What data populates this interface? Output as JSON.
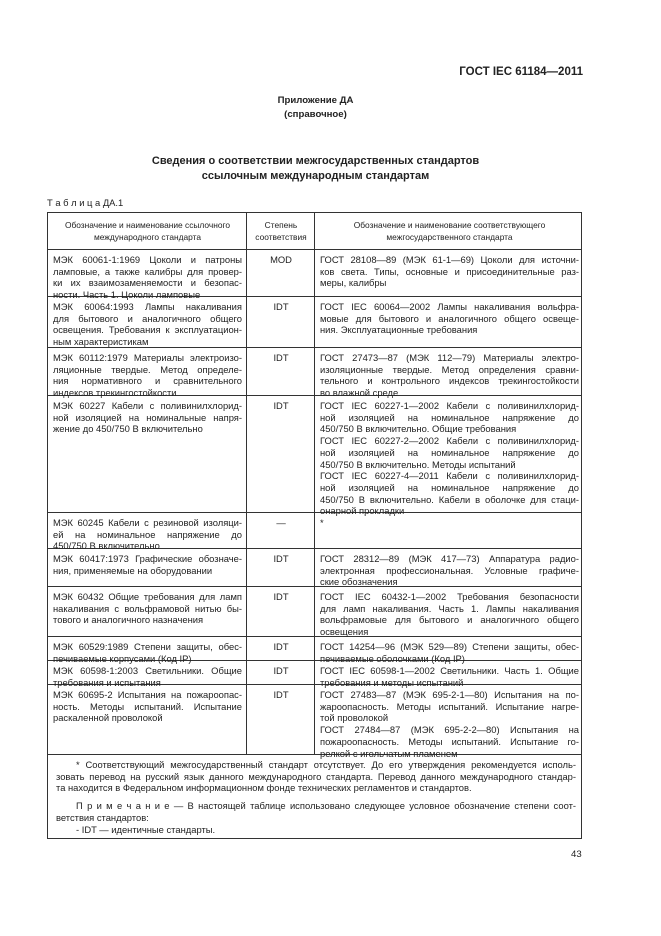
{
  "header": {
    "standard": "ГОСТ IEC 61184—2011",
    "appendix": "Приложение ДА",
    "appendix_note": "(справочное)",
    "title": [
      "Сведения о соответствии межгосударственных стандартов",
      "ссылочным международным стандартам"
    ],
    "table_label": "Т а б л и ц а ДА.1"
  },
  "table": {
    "columns": [
      [
        "Обозначение и наименование ссылочного",
        "международного стандарта"
      ],
      [
        "Степень",
        "соответствия"
      ],
      [
        "Обозначение и наименование соответствующего",
        "межгосударственного стандарта"
      ]
    ],
    "rows": [
      [
        [
          "МЭК 60061-1:1969 Цоколи и патроны",
          "ламповые, а также калибры для провер-",
          "ки их взаимозаменяемости и безопас-",
          "ности. Часть 1. Цоколи ламповые"
        ],
        [
          "MOD"
        ],
        [
          "ГОСТ 28108—89 (МЭК 61-1—69) Цоколи для источни-",
          "ков света. Типы, основные и присоединительные раз-",
          "меры, калибры"
        ]
      ],
      [
        [
          "МЭК 60064:1993 Лампы накаливания",
          "для бытового и аналогичного общего",
          "освещения. Требования к эксплуатацион-",
          "ным характеристикам"
        ],
        [
          "IDT"
        ],
        [
          "ГОСТ IEC 60064—2002 Лампы накаливания вольфра-",
          "мовые для бытового и аналогичного общего освеще-",
          "ния. Эксплуатационные требования"
        ]
      ],
      [
        [
          "МЭК 60112:1979 Материалы электроизо-",
          "ляционные твердые. Метод определе-",
          "ния нормативного и сравнительного",
          "индексов трекингостойкости"
        ],
        [
          "IDT"
        ],
        [
          "ГОСТ 27473—87 (МЭК 112—79) Материалы электро-",
          "изоляционные твердые. Метод определения сравни-",
          "тельного и контрольного индексов трекингостойкости",
          "во влажной среде"
        ]
      ],
      [
        [
          "МЭК 60227 Кабели с поливинилхлорид-",
          "ной изоляцией на номинальные напря-",
          "жение до 450/750 В включительно"
        ],
        [
          "IDT"
        ],
        [
          "ГОСТ IEC 60227-1—2002 Кабели с поливинилхлорид-",
          "ной изоляцией на номинальное напряжение до",
          "450/750 В включительно. Общие требования",
          "ГОСТ IEC 60227-2—2002 Кабели с поливинилхлорид-",
          "ной изоляцией на номинальное напряжение до",
          "450/750 В включительно. Методы испытаний",
          "ГОСТ IEC 60227-4—2011 Кабели с поливинилхлорид-",
          "ной изоляцией на номинальное напряжение до",
          "450/750 В включительно. Кабели в оболочке для стаци-",
          "онарной прокладки"
        ]
      ],
      [
        [
          "МЭК 60245 Кабели с резиновой изоляци-",
          "ей на номинальное напряжение до",
          "450/750 В включительно"
        ],
        [
          "—"
        ],
        [
          "*"
        ]
      ],
      [
        [
          "МЭК 60417:1973 Графические обозначе-",
          "ния, применяемые на оборудовании"
        ],
        [
          "IDT"
        ],
        [
          "ГОСТ 28312—89 (МЭК 417—73) Аппаратура радио-",
          "электронная профессиональная. Условные графиче-",
          "ские обозначения"
        ]
      ],
      [
        [
          "МЭК 60432 Общие требования для ламп",
          "накаливания с вольфрамовой нитью бы-",
          "тового и аналогичного назначения"
        ],
        [
          "IDT"
        ],
        [
          "ГОСТ IEC 60432-1—2002 Требования безопасности",
          "для ламп накаливания. Часть 1. Лампы накаливания",
          "вольфрамовые для бытового и аналогичного общего",
          "освещения"
        ]
      ],
      [
        [
          "МЭК 60529:1989 Степени защиты, обес-",
          "печиваемые корпусами (Код IP)"
        ],
        [
          "IDT"
        ],
        [
          "ГОСТ 14254—96 (МЭК 529—89) Степени защиты, обес-",
          "печиваемые оболочками (Код IP)"
        ]
      ],
      [
        [
          "МЭК 60598-1:2003 Светильники. Общие",
          "требования и испытания"
        ],
        [
          "IDT"
        ],
        [
          "ГОСТ IEC 60598-1—2002 Светильники. Часть 1. Общие",
          "требования и методы испытаний"
        ]
      ],
      [
        [
          "МЭК 60695-2 Испытания на пожароопас-",
          "ность. Методы испытаний. Испытание",
          "раскаленной проволокой"
        ],
        [
          "IDT"
        ],
        [
          "ГОСТ 27483—87 (МЭК 695-2-1—80) Испытания на по-",
          "жароопасность. Методы испытаний. Испытание нагре-",
          "той проволокой",
          "ГОСТ 27484—87 (МЭК 695-2-2—80) Испытания на",
          "пожароопасность. Методы испытаний. Испытание го-",
          "релкой с игольчатым пламенем"
        ]
      ]
    ],
    "footnote": [
      "* Соответствующий межгосударственный стандарт отсутствует. До его утверждения рекомендуется исполь-",
      "зовать перевод на русский язык данного международного стандарта. Перевод данного международного стандар-",
      "та находится в Федеральном информационном фонде технических регламентов и стандартов."
    ],
    "note": [
      "П р и м е ч а н и е — В настоящей таблице использовано следующее условное обозначение степени соот-",
      "ветствия стандартов:",
      "- IDT — идентичные стандарты."
    ]
  },
  "page_number": "43"
}
